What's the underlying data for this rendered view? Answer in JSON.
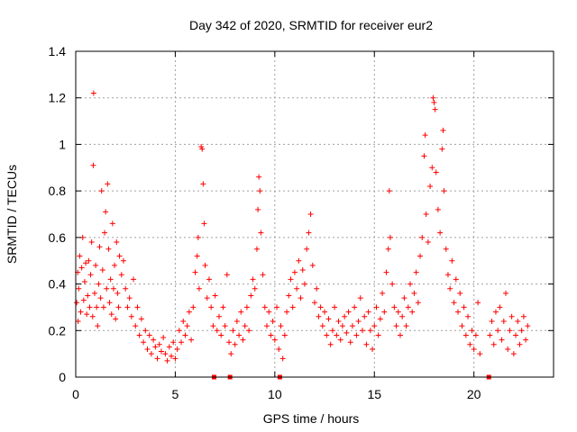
{
  "chart_data": {
    "type": "scatter",
    "title": "Day 342 of 2020, SRMTID for receiver eur2",
    "xlabel": "GPS time / hours",
    "ylabel": "SRMTID / TECUs",
    "xlim": [
      0,
      24
    ],
    "ylim": [
      0,
      1.4
    ],
    "xticks": [
      0,
      5,
      10,
      15,
      20
    ],
    "yticks": [
      0,
      0.2,
      0.4,
      0.6,
      0.8,
      1,
      1.2,
      1.4
    ],
    "xtick_labels": [
      "0",
      "5",
      "10",
      "15",
      "20"
    ],
    "ytick_labels": [
      "0",
      "0.2",
      "0.4",
      "0.6",
      "0.8",
      "1",
      "1.2",
      "1.4"
    ],
    "grid": true,
    "series_color": "#ff0000",
    "zero_markers": [
      6.95,
      7.75,
      10.25,
      20.75
    ],
    "series": [
      {
        "name": "SRMTID",
        "marker": "plus",
        "points": [
          [
            0.05,
            0.32
          ],
          [
            0.1,
            0.45
          ],
          [
            0.12,
            0.24
          ],
          [
            0.15,
            0.38
          ],
          [
            0.2,
            0.52
          ],
          [
            0.25,
            0.28
          ],
          [
            0.3,
            0.47
          ],
          [
            0.35,
            0.6
          ],
          [
            0.4,
            0.33
          ],
          [
            0.45,
            0.41
          ],
          [
            0.5,
            0.49
          ],
          [
            0.55,
            0.27
          ],
          [
            0.6,
            0.35
          ],
          [
            0.65,
            0.5
          ],
          [
            0.7,
            0.3
          ],
          [
            0.75,
            0.44
          ],
          [
            0.8,
            0.58
          ],
          [
            0.85,
            0.26
          ],
          [
            0.88,
            0.91
          ],
          [
            0.9,
            1.22
          ],
          [
            0.95,
            0.36
          ],
          [
            1.0,
            0.48
          ],
          [
            1.05,
            0.3
          ],
          [
            1.1,
            0.22
          ],
          [
            1.15,
            0.4
          ],
          [
            1.2,
            0.56
          ],
          [
            1.25,
            0.34
          ],
          [
            1.3,
            0.8
          ],
          [
            1.35,
            0.46
          ],
          [
            1.4,
            0.3
          ],
          [
            1.45,
            0.62
          ],
          [
            1.5,
            0.71
          ],
          [
            1.55,
            0.38
          ],
          [
            1.6,
            0.83
          ],
          [
            1.65,
            0.55
          ],
          [
            1.7,
            0.32
          ],
          [
            1.75,
            0.42
          ],
          [
            1.8,
            0.27
          ],
          [
            1.85,
            0.66
          ],
          [
            1.9,
            0.38
          ],
          [
            1.95,
            0.48
          ],
          [
            2.0,
            0.25
          ],
          [
            2.05,
            0.58
          ],
          [
            2.1,
            0.36
          ],
          [
            2.15,
            0.3
          ],
          [
            2.2,
            0.52
          ],
          [
            2.3,
            0.44
          ],
          [
            2.4,
            0.5
          ],
          [
            2.5,
            0.38
          ],
          [
            2.6,
            0.3
          ],
          [
            2.7,
            0.34
          ],
          [
            2.8,
            0.26
          ],
          [
            2.9,
            0.42
          ],
          [
            3.0,
            0.22
          ],
          [
            3.1,
            0.3
          ],
          [
            3.2,
            0.18
          ],
          [
            3.3,
            0.25
          ],
          [
            3.4,
            0.15
          ],
          [
            3.5,
            0.2
          ],
          [
            3.6,
            0.12
          ],
          [
            3.7,
            0.18
          ],
          [
            3.8,
            0.1
          ],
          [
            3.9,
            0.16
          ],
          [
            4.0,
            0.13
          ],
          [
            4.1,
            0.08
          ],
          [
            4.2,
            0.14
          ],
          [
            4.3,
            0.11
          ],
          [
            4.4,
            0.17
          ],
          [
            4.5,
            0.1
          ],
          [
            4.6,
            0.07
          ],
          [
            4.7,
            0.13
          ],
          [
            4.8,
            0.09
          ],
          [
            4.9,
            0.15
          ],
          [
            5.0,
            0.08
          ],
          [
            5.1,
            0.12
          ],
          [
            5.2,
            0.2
          ],
          [
            5.3,
            0.15
          ],
          [
            5.4,
            0.24
          ],
          [
            5.5,
            0.18
          ],
          [
            5.6,
            0.22
          ],
          [
            5.7,
            0.28
          ],
          [
            5.8,
            0.16
          ],
          [
            5.9,
            0.3
          ],
          [
            6.0,
            0.45
          ],
          [
            6.1,
            0.52
          ],
          [
            6.15,
            0.6
          ],
          [
            6.2,
            0.38
          ],
          [
            6.3,
            0.99
          ],
          [
            6.35,
            0.98
          ],
          [
            6.4,
            0.83
          ],
          [
            6.45,
            0.66
          ],
          [
            6.5,
            0.48
          ],
          [
            6.6,
            0.34
          ],
          [
            6.7,
            0.42
          ],
          [
            6.8,
            0.3
          ],
          [
            6.9,
            0.22
          ],
          [
            7.0,
            0.35
          ],
          [
            7.1,
            0.2
          ],
          [
            7.2,
            0.26
          ],
          [
            7.3,
            0.18
          ],
          [
            7.4,
            0.3
          ],
          [
            7.5,
            0.22
          ],
          [
            7.6,
            0.44
          ],
          [
            7.7,
            0.15
          ],
          [
            7.8,
            0.1
          ],
          [
            7.9,
            0.2
          ],
          [
            8.0,
            0.14
          ],
          [
            8.1,
            0.24
          ],
          [
            8.2,
            0.18
          ],
          [
            8.3,
            0.28
          ],
          [
            8.4,
            0.16
          ],
          [
            8.5,
            0.22
          ],
          [
            8.6,
            0.3
          ],
          [
            8.7,
            0.2
          ],
          [
            8.8,
            0.35
          ],
          [
            8.9,
            0.42
          ],
          [
            9.0,
            0.38
          ],
          [
            9.1,
            0.55
          ],
          [
            9.15,
            0.72
          ],
          [
            9.2,
            0.86
          ],
          [
            9.25,
            0.8
          ],
          [
            9.3,
            0.62
          ],
          [
            9.4,
            0.44
          ],
          [
            9.5,
            0.3
          ],
          [
            9.6,
            0.22
          ],
          [
            9.7,
            0.28
          ],
          [
            9.8,
            0.18
          ],
          [
            9.9,
            0.24
          ],
          [
            10.0,
            0.16
          ],
          [
            10.1,
            0.3
          ],
          [
            10.2,
            0.12
          ],
          [
            10.3,
            0.22
          ],
          [
            10.4,
            0.08
          ],
          [
            10.5,
            0.18
          ],
          [
            10.6,
            0.28
          ],
          [
            10.7,
            0.35
          ],
          [
            10.8,
            0.42
          ],
          [
            10.9,
            0.3
          ],
          [
            11.0,
            0.45
          ],
          [
            11.1,
            0.38
          ],
          [
            11.2,
            0.5
          ],
          [
            11.3,
            0.34
          ],
          [
            11.4,
            0.46
          ],
          [
            11.5,
            0.4
          ],
          [
            11.6,
            0.55
          ],
          [
            11.7,
            0.62
          ],
          [
            11.8,
            0.7
          ],
          [
            11.9,
            0.48
          ],
          [
            12.0,
            0.32
          ],
          [
            12.1,
            0.38
          ],
          [
            12.2,
            0.26
          ],
          [
            12.3,
            0.3
          ],
          [
            12.4,
            0.22
          ],
          [
            12.5,
            0.28
          ],
          [
            12.6,
            0.18
          ],
          [
            12.7,
            0.25
          ],
          [
            12.8,
            0.14
          ],
          [
            12.9,
            0.2
          ],
          [
            13.0,
            0.3
          ],
          [
            13.1,
            0.18
          ],
          [
            13.2,
            0.24
          ],
          [
            13.3,
            0.16
          ],
          [
            13.4,
            0.22
          ],
          [
            13.5,
            0.26
          ],
          [
            13.6,
            0.19
          ],
          [
            13.7,
            0.28
          ],
          [
            13.8,
            0.15
          ],
          [
            13.9,
            0.22
          ],
          [
            14.0,
            0.3
          ],
          [
            14.1,
            0.18
          ],
          [
            14.2,
            0.24
          ],
          [
            14.3,
            0.34
          ],
          [
            14.4,
            0.2
          ],
          [
            14.5,
            0.26
          ],
          [
            14.6,
            0.14
          ],
          [
            14.7,
            0.28
          ],
          [
            14.8,
            0.2
          ],
          [
            14.9,
            0.12
          ],
          [
            15.0,
            0.22
          ],
          [
            15.1,
            0.3
          ],
          [
            15.2,
            0.18
          ],
          [
            15.3,
            0.25
          ],
          [
            15.4,
            0.36
          ],
          [
            15.5,
            0.28
          ],
          [
            15.6,
            0.45
          ],
          [
            15.7,
            0.55
          ],
          [
            15.75,
            0.8
          ],
          [
            15.8,
            0.6
          ],
          [
            15.9,
            0.4
          ],
          [
            16.0,
            0.3
          ],
          [
            16.1,
            0.22
          ],
          [
            16.2,
            0.28
          ],
          [
            16.3,
            0.18
          ],
          [
            16.4,
            0.26
          ],
          [
            16.5,
            0.34
          ],
          [
            16.6,
            0.22
          ],
          [
            16.7,
            0.3
          ],
          [
            16.8,
            0.4
          ],
          [
            16.9,
            0.28
          ],
          [
            17.0,
            0.36
          ],
          [
            17.1,
            0.45
          ],
          [
            17.2,
            0.32
          ],
          [
            17.3,
            0.52
          ],
          [
            17.4,
            0.6
          ],
          [
            17.5,
            0.95
          ],
          [
            17.55,
            1.04
          ],
          [
            17.6,
            0.7
          ],
          [
            17.7,
            0.58
          ],
          [
            17.8,
            0.82
          ],
          [
            17.9,
            0.9
          ],
          [
            17.95,
            1.2
          ],
          [
            18.0,
            1.18
          ],
          [
            18.05,
            1.15
          ],
          [
            18.1,
            0.88
          ],
          [
            18.2,
            0.72
          ],
          [
            18.3,
            0.62
          ],
          [
            18.4,
            0.98
          ],
          [
            18.45,
            1.06
          ],
          [
            18.5,
            0.8
          ],
          [
            18.6,
            0.55
          ],
          [
            18.7,
            0.44
          ],
          [
            18.8,
            0.38
          ],
          [
            18.9,
            0.5
          ],
          [
            19.0,
            0.32
          ],
          [
            19.1,
            0.42
          ],
          [
            19.2,
            0.28
          ],
          [
            19.3,
            0.36
          ],
          [
            19.4,
            0.22
          ],
          [
            19.5,
            0.3
          ],
          [
            19.6,
            0.18
          ],
          [
            19.7,
            0.26
          ],
          [
            19.8,
            0.14
          ],
          [
            19.9,
            0.2
          ],
          [
            20.0,
            0.12
          ],
          [
            20.1,
            0.18
          ],
          [
            20.2,
            0.32
          ],
          [
            20.3,
            0.1
          ],
          [
            20.8,
            0.18
          ],
          [
            20.9,
            0.24
          ],
          [
            21.0,
            0.14
          ],
          [
            21.1,
            0.28
          ],
          [
            21.2,
            0.2
          ],
          [
            21.3,
            0.3
          ],
          [
            21.4,
            0.16
          ],
          [
            21.5,
            0.24
          ],
          [
            21.6,
            0.36
          ],
          [
            21.7,
            0.12
          ],
          [
            21.8,
            0.2
          ],
          [
            21.9,
            0.26
          ],
          [
            22.0,
            0.1
          ],
          [
            22.1,
            0.18
          ],
          [
            22.2,
            0.24
          ],
          [
            22.3,
            0.14
          ],
          [
            22.4,
            0.2
          ],
          [
            22.5,
            0.26
          ],
          [
            22.6,
            0.16
          ],
          [
            22.7,
            0.22
          ]
        ]
      }
    ]
  }
}
